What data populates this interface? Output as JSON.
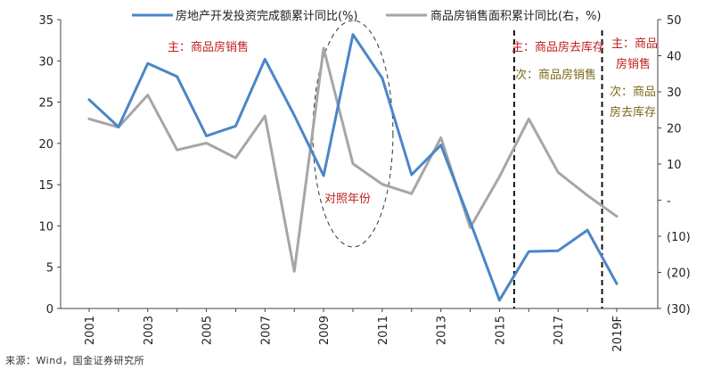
{
  "chart_data": {
    "type": "line",
    "x": [
      "2001",
      "2002",
      "2003",
      "2004",
      "2005",
      "2006",
      "2007",
      "2008",
      "2009",
      "2010",
      "2011",
      "2012",
      "2013",
      "2014",
      "2015",
      "2016",
      "2017",
      "2018",
      "2019F"
    ],
    "x_tick_labels": [
      "2001",
      "2003",
      "2005",
      "2007",
      "2009",
      "2011",
      "2013",
      "2015",
      "2017",
      "2019F"
    ],
    "series": [
      {
        "name": "房地产开发投资完成额累计同比(%)",
        "axis": "left",
        "color": "#4a86c8",
        "values": [
          25.3,
          22.0,
          29.7,
          28.1,
          20.9,
          22.1,
          30.2,
          23.4,
          16.1,
          33.2,
          27.9,
          16.2,
          19.8,
          10.5,
          1.0,
          6.9,
          7.0,
          9.5,
          3.0
        ]
      },
      {
        "name": "商品房销售面积累计同比(右，%)",
        "axis": "right",
        "color": "#a6a6a6",
        "values": [
          22.5,
          20.2,
          29.1,
          13.9,
          15.8,
          11.7,
          23.3,
          -19.7,
          42.1,
          10.1,
          4.4,
          1.8,
          17.3,
          -7.6,
          6.5,
          22.5,
          7.7,
          1.3,
          -4.5
        ]
      }
    ],
    "y_left": {
      "min": 0,
      "max": 35,
      "ticks": [
        "0",
        "5",
        "10",
        "15",
        "20",
        "25",
        "30",
        "35"
      ]
    },
    "y_right": {
      "min": -30,
      "max": 50,
      "ticks": [
        "(30)",
        "(20)",
        "(10)",
        "-",
        "10",
        "20",
        "30",
        "40",
        "50"
      ]
    },
    "dashed_vlines_after": [
      "2015",
      "2018"
    ],
    "ellipse_around": [
      "2009",
      "2011"
    ],
    "annotations": {
      "main_sales_left": "主：商品房销售",
      "period_2010": "对照年份",
      "main_inventory_mid": "主：商品房去库存",
      "secondary_sales_mid": "次：商品房销售",
      "main_sales_right": "主：商品",
      "main_sales_right_2": "房销售",
      "secondary_inventory_right": "次：商品",
      "secondary_inventory_right_2": "房去库存"
    }
  },
  "source": "来源：Wind，国金证券研究所",
  "colors": {
    "annot_red": "#c0201e",
    "annot_olive": "#7a6a1a"
  }
}
